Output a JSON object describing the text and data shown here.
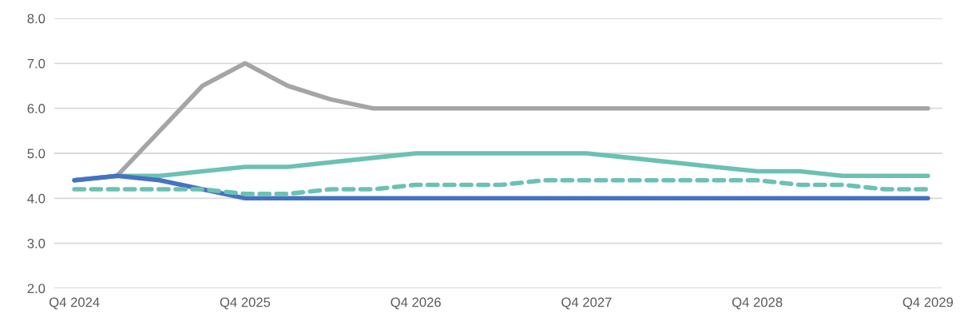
{
  "chart_data": {
    "type": "line",
    "categories": [
      "Q4 2024",
      null,
      null,
      null,
      "Q4 2025",
      null,
      null,
      null,
      "Q4 2026",
      null,
      null,
      null,
      "Q4 2027",
      null,
      null,
      null,
      "Q4 2028",
      null,
      null,
      null,
      "Q4 2029"
    ],
    "series": [
      {
        "color": "#a5a5a5",
        "values": [
          4.4,
          4.5,
          5.5,
          6.5,
          7.0,
          6.5,
          6.2,
          6.0,
          6.0,
          6.0,
          6.0,
          6.0,
          6.0,
          6.0,
          6.0,
          6.0,
          6.0,
          6.0,
          6.0,
          6.0,
          6.0
        ]
      },
      {
        "color": "#6bc1b3",
        "values": [
          4.4,
          4.5,
          4.5,
          4.6,
          4.7,
          4.7,
          4.8,
          4.9,
          5.0,
          5.0,
          5.0,
          5.0,
          5.0,
          4.9,
          4.8,
          4.7,
          4.6,
          4.6,
          4.5,
          4.5,
          4.5
        ]
      },
      {
        "color": "#4472c4",
        "values": [
          4.4,
          4.5,
          4.4,
          4.2,
          4.0,
          4.0,
          4.0,
          4.0,
          4.0,
          4.0,
          4.0,
          4.0,
          4.0,
          4.0,
          4.0,
          4.0,
          4.0,
          4.0,
          4.0,
          4.0,
          4.0
        ]
      },
      {
        "color": "#6bc1b3",
        "line_style": "dashed",
        "values": [
          4.2,
          4.2,
          4.2,
          4.2,
          4.1,
          4.1,
          4.2,
          4.2,
          4.3,
          4.3,
          4.3,
          4.4,
          4.4,
          4.4,
          4.4,
          4.4,
          4.4,
          4.3,
          4.3,
          4.2,
          4.2
        ]
      }
    ],
    "ylim": [
      2.0,
      8.0
    ],
    "yticks": [
      {
        "value": 2,
        "label": "2.0"
      },
      {
        "value": 3,
        "label": "3.0"
      },
      {
        "value": 4,
        "label": "4.0"
      },
      {
        "value": 5,
        "label": "5.0"
      },
      {
        "value": 6,
        "label": "6.0"
      },
      {
        "value": 7,
        "label": "7.0"
      },
      {
        "value": 8,
        "label": "8.0"
      }
    ],
    "grid": "y",
    "marker": "none",
    "line_style": "solid"
  }
}
